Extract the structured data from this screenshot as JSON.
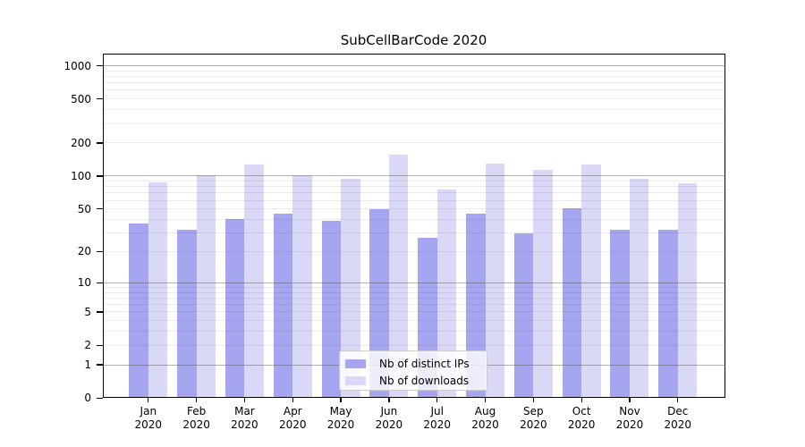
{
  "chart_data": {
    "type": "bar",
    "title": "SubCellBarCode 2020",
    "categories": [
      "Jan",
      "Feb",
      "Mar",
      "Apr",
      "May",
      "Jun",
      "Jul",
      "Aug",
      "Sep",
      "Oct",
      "Nov",
      "Dec"
    ],
    "category_year": "2020",
    "series": [
      {
        "name": "Nb of distinct IPs",
        "color": "#a6a6f0",
        "values": [
          37,
          32,
          40,
          45,
          39,
          50,
          27,
          45,
          30,
          51,
          32,
          32
        ]
      },
      {
        "name": "Nb of downloads",
        "color": "#d9d9f7",
        "values": [
          87,
          102,
          128,
          101,
          95,
          158,
          76,
          130,
          115,
          128,
          94,
          86
        ]
      }
    ],
    "yscale": "log1p",
    "yticks": [
      0,
      1,
      2,
      5,
      10,
      20,
      50,
      100,
      200,
      500,
      1000
    ],
    "ylim": [
      0,
      1300
    ],
    "xlabel": "",
    "ylabel": "",
    "grid": true,
    "legend_position": "lower center"
  },
  "colors": {
    "major_grid": "#b0b0b0",
    "minor_grid": "#ebebeb",
    "spine": "#000000",
    "text": "#000000"
  }
}
